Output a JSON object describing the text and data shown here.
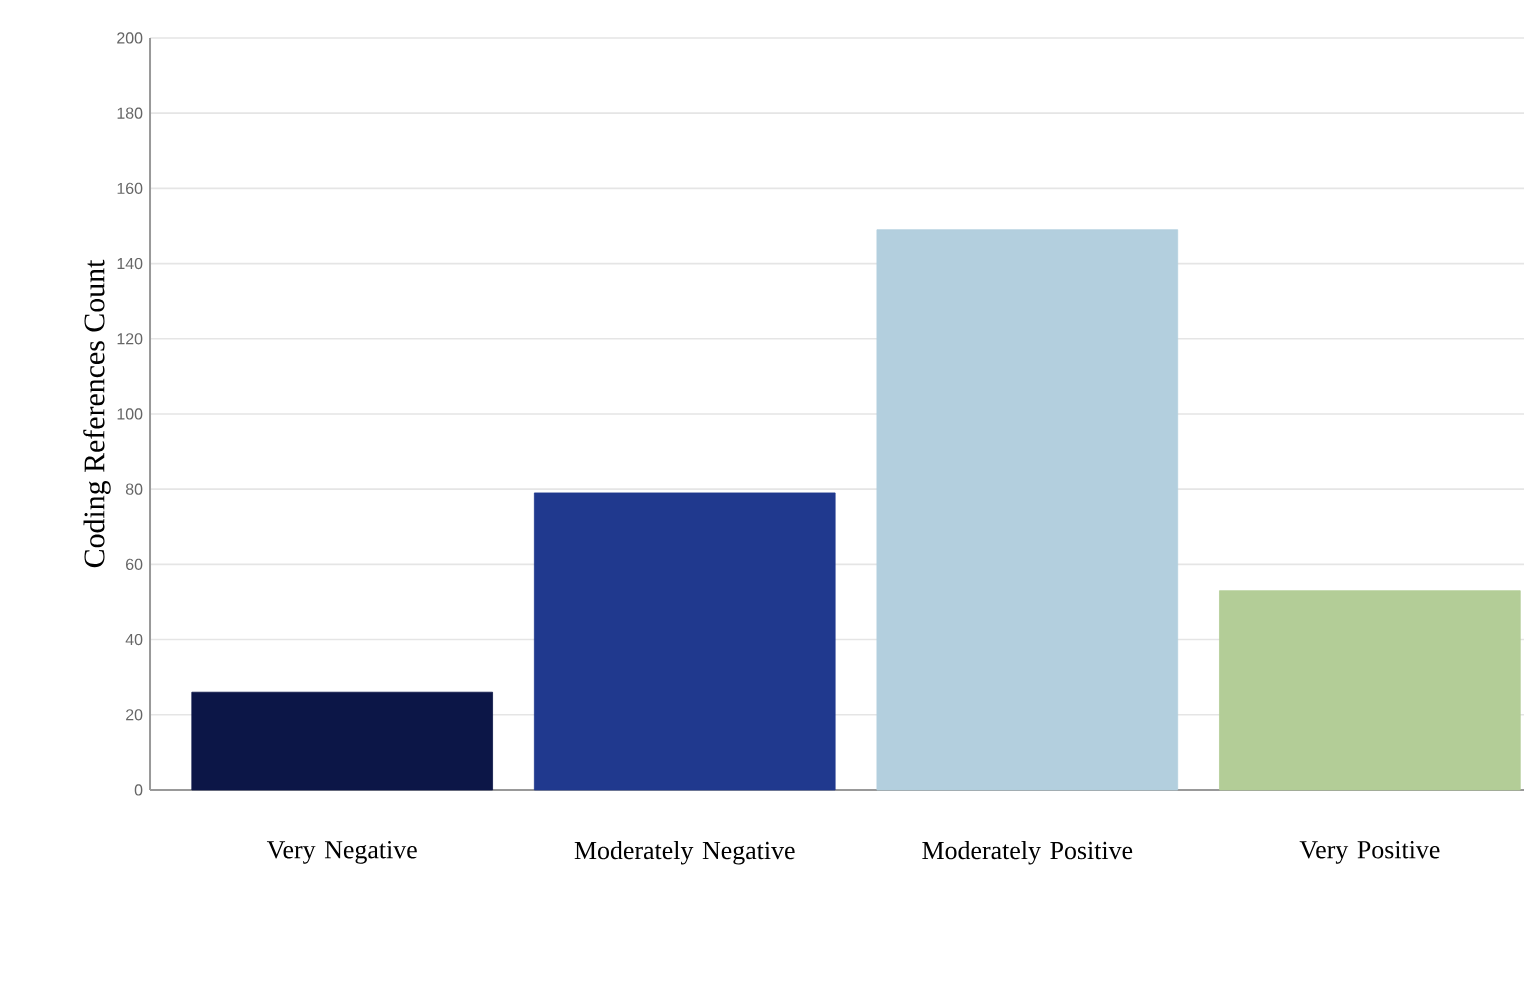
{
  "chart_data": {
    "type": "bar",
    "categories": [
      "Very Negative",
      "Moderately Negative",
      "Moderately Positive",
      "Very Positive"
    ],
    "values": [
      26,
      79,
      149,
      53
    ],
    "colors": [
      "#0c1647",
      "#20398e",
      "#b3cfde",
      "#b3cd97"
    ],
    "ylabel": "Coding References Count",
    "ylim": [
      0,
      200
    ],
    "yticks": [
      0,
      20,
      40,
      60,
      80,
      100,
      120,
      140,
      160,
      180,
      200
    ],
    "grid": "y"
  }
}
